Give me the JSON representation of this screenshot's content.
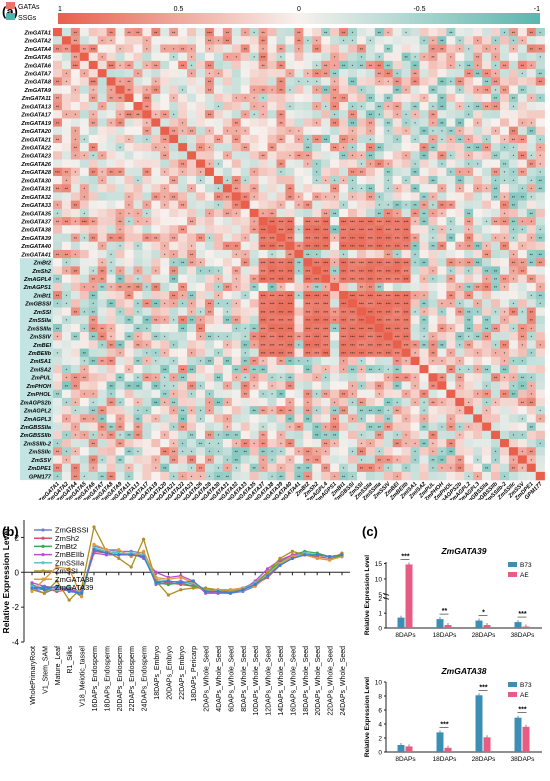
{
  "panel_a": {
    "label": "(a)",
    "legend": [
      {
        "name": "GATAs",
        "color": "#e8756a"
      },
      {
        "name": "SSGs",
        "color": "#4fb4b0"
      }
    ],
    "colorbar": {
      "ticks": [
        "1",
        "0.5",
        "0",
        "-0.5",
        "-1"
      ],
      "pos_color": "#e8604c",
      "mid_color": "#f7f1ee",
      "neg_color": "#59b7ae"
    }
  },
  "chart_data": [
    {
      "type": "heatmap",
      "rows": [
        "ZmGATA1",
        "ZmGATA2",
        "ZmGATA4",
        "ZmGATA5",
        "ZmGATA6",
        "ZmGATA7",
        "ZmGATA8",
        "ZmGATA9",
        "ZmGATA11",
        "ZmGATA13",
        "ZmGATA17",
        "ZmGATA19",
        "ZmGATA20",
        "ZmGATA21",
        "ZmGATA22",
        "ZmGATA23",
        "ZmGATA26",
        "ZmGATA28",
        "ZmGATA30",
        "ZmGATA31",
        "ZmGATA32",
        "ZmGATA33",
        "ZmGATA35",
        "ZmGATA37",
        "ZmGATA38",
        "ZmGATA39",
        "ZmGATA40",
        "ZmGATA41",
        "ZmBt2",
        "ZmSh2",
        "ZmAGPL4",
        "ZmAGPS1",
        "ZmBt1",
        "ZmGBSSI",
        "ZmSSI",
        "ZmSSIIa",
        "ZmSSIIIa",
        "ZmSSIV",
        "ZmBEI",
        "ZmBEIIb",
        "ZmISA1",
        "ZmISA2",
        "ZmPUL",
        "ZmPHOH",
        "ZmPHOL",
        "ZmAGPS2b",
        "ZmAGPL2",
        "ZmAGPL3",
        "ZmGBSSIIa",
        "ZmGBSSIIb",
        "ZmSSIIb-2",
        "ZmSSIIc",
        "ZmSSV",
        "ZmDPE1",
        "GPM177"
      ],
      "columns": [
        "ZmGATA1",
        "ZmGATA2",
        "ZmGATA4",
        "ZmGATA5",
        "ZmGATA6",
        "ZmGATA7",
        "ZmGATA8",
        "ZmGATA9",
        "ZmGATA11",
        "ZmGATA13",
        "ZmGATA17",
        "ZmGATA19",
        "ZmGATA20",
        "ZmGATA21",
        "ZmGATA22",
        "ZmGATA23",
        "ZmGATA26",
        "ZmGATA28",
        "ZmGATA30",
        "ZmGATA31",
        "ZmGATA32",
        "ZmGATA33",
        "ZmGATA35",
        "ZmGATA37",
        "ZmGATA38",
        "ZmGATA39",
        "ZmGATA40",
        "ZmGATA41",
        "ZmBt2",
        "ZmSh2",
        "ZmAGPL4",
        "ZmAGPS1",
        "ZmBt1",
        "ZmGBSSI",
        "ZmSSI",
        "ZmSSIIa",
        "ZmSSIIIa",
        "ZmSSIV",
        "ZmBEI",
        "ZmBEIIb",
        "ZmISA1",
        "ZmISA2",
        "ZmPUL",
        "ZmPHOH",
        "ZmPHOL",
        "ZmAGPS2b",
        "ZmAGPL2",
        "ZmAGPL3",
        "ZmGBSSIIa",
        "ZmGBSSIIb",
        "ZmSSIIb-2",
        "ZmSSIIc",
        "ZmSSV",
        "ZmDPE1",
        "GPM177"
      ],
      "gata_count": 28,
      "value_range": [
        -1,
        1
      ],
      "strong_block": {
        "rows": [
          "ZmGATA37",
          "ZmGATA38",
          "ZmGATA39",
          "ZmGATA40",
          "ZmBt2",
          "ZmSh2",
          "ZmAGPL4",
          "ZmBt1",
          "ZmGBSSI",
          "ZmSSI",
          "ZmSSIIa",
          "ZmSSIIIa",
          "ZmSSIV",
          "ZmBEI",
          "ZmBEIIb"
        ],
        "value": 0.9
      },
      "significance_marks": [
        "*",
        "**",
        "***"
      ]
    },
    {
      "type": "line",
      "ylabel": "Relative Expression Level",
      "ylim": [
        -4,
        3
      ],
      "yticks": [
        -4,
        -2,
        0,
        2
      ],
      "x": [
        "WholePrimaryRoot",
        "V1_Stem_SAM",
        "Mature_Leaf",
        "R1_Silks",
        "V18_Meiotic_tassel",
        "16DAPs_Endosperm",
        "18DAPs_Endosperm",
        "20DAPs_Endosperm",
        "22DAPs_Endosperm",
        "24DAPs_Endosperm",
        "18DAPs_Embryo",
        "20DAPs_Embryo",
        "22DAPs_Embryo",
        "18DAPs_Pericarp",
        "2DAPs_Whole_Seed",
        "4DAPs_Whole_Seed",
        "6DAPs_Whole_Seed",
        "8DAPs_Whole_Seed",
        "10DAPs_Whole_Seed",
        "12DAPs_Whole_Seed",
        "14DAPs_Whole_Seed",
        "16DAPs_Whole_Seed",
        "18DAPs_Whole_Seed",
        "20DAPs_Whole_Seed",
        "22DAPs_Whole_Seed",
        "24DAPs_Whole_Seed"
      ],
      "series": [
        {
          "name": "ZmGBSSI",
          "color": "#6f7fd6",
          "values": [
            -0.9,
            -1.2,
            -0.9,
            -1.0,
            -1.3,
            1.5,
            1.3,
            1.2,
            1.2,
            1.1,
            -0.7,
            -0.6,
            -0.5,
            -0.7,
            -1.1,
            -1.2,
            -1.2,
            -1.1,
            -0.8,
            -0.2,
            0.5,
            0.9,
            1.1,
            1.0,
            0.9,
            1.0
          ]
        },
        {
          "name": "ZmSh2",
          "color": "#d94d6b",
          "values": [
            -0.8,
            -0.9,
            -1.1,
            -1.0,
            -1.2,
            1.2,
            1.1,
            1.0,
            1.0,
            0.9,
            -0.5,
            -0.6,
            -0.7,
            -0.8,
            -1.0,
            -1.1,
            -1.1,
            -1.0,
            -0.7,
            -0.3,
            0.4,
            0.8,
            1.0,
            0.9,
            0.8,
            0.9
          ]
        },
        {
          "name": "ZmBt2",
          "color": "#3aa655",
          "values": [
            -0.7,
            -1.0,
            -1.0,
            -0.9,
            -1.4,
            1.3,
            1.2,
            1.1,
            1.0,
            1.0,
            -0.6,
            -0.7,
            -0.6,
            -0.8,
            -1.0,
            -1.0,
            -1.0,
            -0.9,
            -0.6,
            0.0,
            0.6,
            1.0,
            1.2,
            1.1,
            0.9,
            0.9
          ]
        },
        {
          "name": "ZmBEIIb",
          "color": "#c24ad2",
          "values": [
            -0.6,
            -0.8,
            -0.9,
            -1.0,
            -1.1,
            1.1,
            1.0,
            1.0,
            1.1,
            0.8,
            0.0,
            -0.3,
            -0.2,
            -0.5,
            -1.2,
            -1.2,
            -1.1,
            -1.0,
            -0.5,
            0.2,
            0.7,
            1.0,
            1.1,
            1.0,
            0.9,
            1.0
          ]
        },
        {
          "name": "ZmSSIIa",
          "color": "#5fc3c0",
          "values": [
            -0.8,
            -0.9,
            -1.0,
            -0.8,
            -1.2,
            1.4,
            1.2,
            1.1,
            1.1,
            1.0,
            -0.4,
            -0.5,
            -0.6,
            -0.6,
            -1.0,
            -1.1,
            -1.0,
            -1.0,
            -0.6,
            -0.1,
            0.5,
            0.9,
            1.1,
            1.0,
            0.9,
            1.0
          ]
        },
        {
          "name": "ZmSSI",
          "color": "#b08d1e",
          "values": [
            -1.0,
            -1.2,
            -0.5,
            -1.6,
            -0.9,
            2.6,
            1.2,
            0.8,
            0.3,
            1.9,
            -0.5,
            -1.3,
            -1.0,
            -0.9,
            -0.9,
            -1.0,
            -1.1,
            -1.0,
            -0.7,
            0.0,
            0.8,
            1.2,
            1.0,
            0.8,
            0.7,
            1.1
          ]
        },
        {
          "name": "ZmGATA38",
          "color": "#e39a3c",
          "values": [
            -1.1,
            -0.4,
            0.3,
            0.2,
            -1.4,
            1.6,
            1.3,
            1.3,
            0.9,
            1.2,
            -0.3,
            -0.4,
            -0.3,
            -0.6,
            -1.1,
            -1.0,
            -1.0,
            -0.9,
            -0.8,
            -0.2,
            0.5,
            0.9,
            1.0,
            0.8,
            0.7,
            0.9
          ]
        },
        {
          "name": "ZmGATA39",
          "color": "#3d7fcf",
          "values": [
            -0.9,
            -1.0,
            -0.8,
            -1.1,
            -1.2,
            1.3,
            1.1,
            1.0,
            1.0,
            0.9,
            -0.6,
            -0.5,
            -0.6,
            -0.5,
            -1.1,
            -1.1,
            -1.2,
            -1.0,
            -0.7,
            -0.2,
            0.4,
            0.8,
            1.0,
            1.0,
            0.9,
            1.0
          ]
        }
      ]
    },
    {
      "type": "bar",
      "title": "ZmGATA39",
      "ylabel": "Relative Expression Level",
      "categories": [
        "8DAPs",
        "18DAPs",
        "28DAPs",
        "38DAPs"
      ],
      "y_axis_break": [
        2,
        5
      ],
      "yticks": [
        0,
        1,
        2,
        5,
        10,
        15
      ],
      "series": [
        {
          "name": "B73",
          "color": "#3b8fb5",
          "values": [
            0.7,
            0.6,
            0.5,
            0.4
          ]
        },
        {
          "name": "AE",
          "color": "#e85b82",
          "values": [
            14.7,
            0.2,
            0.2,
            0.1
          ]
        }
      ],
      "significance": [
        "***",
        "**",
        "*",
        "***"
      ]
    },
    {
      "type": "bar",
      "title": "ZmGATA38",
      "ylabel": "Relative Expression Level",
      "categories": [
        "8DAPs",
        "18DAPs",
        "28DAPs",
        "38DAPs"
      ],
      "ylim": [
        0,
        10
      ],
      "yticks": [
        0,
        2,
        4,
        6,
        8,
        10
      ],
      "series": [
        {
          "name": "B73",
          "color": "#3b8fb5",
          "values": [
            1.0,
            2.8,
            8.1,
            4.9
          ]
        },
        {
          "name": "AE",
          "color": "#e85b82",
          "values": [
            0.8,
            0.6,
            2.1,
            3.6
          ]
        }
      ],
      "significance": [
        "",
        "***",
        "***",
        "***"
      ]
    }
  ],
  "panel_b": {
    "label": "(b)"
  },
  "panel_c": {
    "label": "(c)"
  }
}
